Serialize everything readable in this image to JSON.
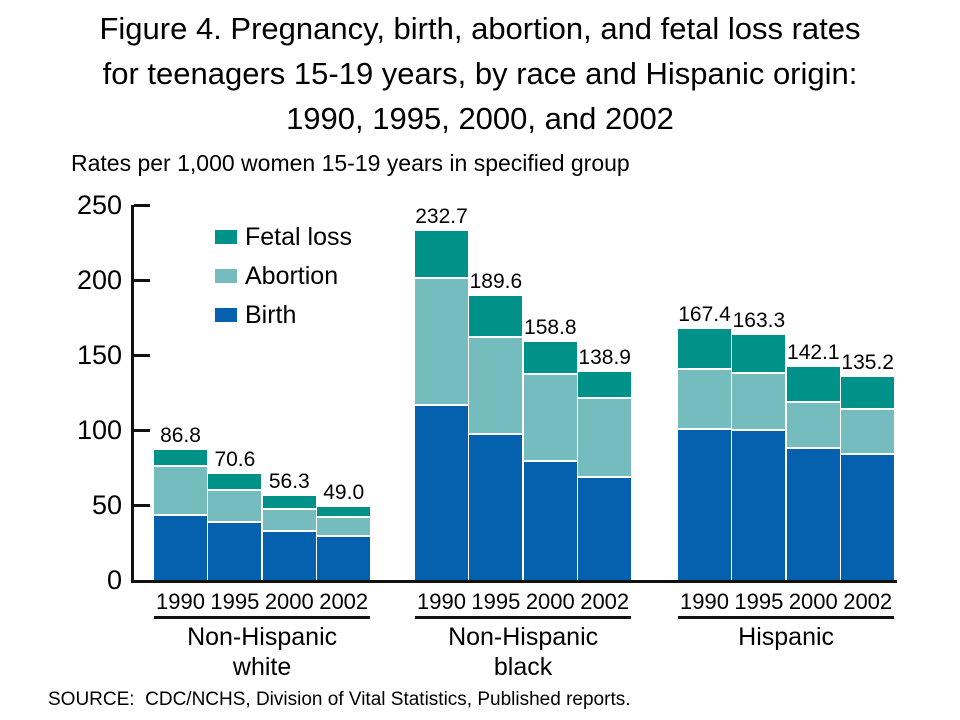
{
  "title": {
    "lines": [
      "Figure 4. Pregnancy, birth, abortion, and fetal loss rates",
      "for teenagers 15-19 years, by race and Hispanic origin:",
      "1990, 1995, 2000, and 2002"
    ]
  },
  "subtitle": "Rates per 1,000 women 15-19 years in specified group",
  "source": "SOURCE:  CDC/NCHS, Division of Vital Statistics, Published reports.",
  "legend": [
    {
      "label": "Fetal loss",
      "color": "#009189",
      "series_key": "fetal_loss"
    },
    {
      "label": "Abortion",
      "color": "#74bcbe",
      "series_key": "abortion"
    },
    {
      "label": "Birth",
      "color": "#0560ae",
      "series_key": "birth"
    }
  ],
  "colors": {
    "birth": "#0560ae",
    "abortion": "#74bcbe",
    "fetal_loss": "#009189",
    "axis": "#111111",
    "segment_separator": "#ffffff"
  },
  "chart_data": {
    "type": "bar",
    "stacked": true,
    "title": "Figure 4. Pregnancy, birth, abortion, and fetal loss rates for teenagers 15-19 years, by race and Hispanic origin: 1990, 1995, 2000, and 2002",
    "ylabel": "Rates per 1,000 women 15-19 years in specified group",
    "xlabel": "",
    "ylim": [
      0,
      250
    ],
    "yticks": [
      0,
      50,
      100,
      150,
      200,
      250
    ],
    "grid": false,
    "legend_position": "upper-left-inside",
    "segment_order_bottom_to_top": [
      "birth",
      "abortion",
      "fetal_loss"
    ],
    "segment_labels": {
      "birth": "Birth",
      "abortion": "Abortion",
      "fetal_loss": "Fetal loss"
    },
    "categories": [
      "1990",
      "1995",
      "2000",
      "2002"
    ],
    "groups": [
      {
        "label_lines": [
          "Non-Hispanic",
          "white"
        ],
        "bars": [
          {
            "year": "1990",
            "total": 86.8,
            "total_label": "86.8",
            "components_est": {
              "birth": 42.5,
              "abortion": 32.5,
              "fetal_loss": 11.8
            }
          },
          {
            "year": "1995",
            "total": 70.6,
            "total_label": "70.6",
            "components_est": {
              "birth": 38.3,
              "abortion": 21.2,
              "fetal_loss": 11.1
            }
          },
          {
            "year": "2000",
            "total": 56.3,
            "total_label": "56.3",
            "components_est": {
              "birth": 32.3,
              "abortion": 14.6,
              "fetal_loss": 9.4
            }
          },
          {
            "year": "2002",
            "total": 49.0,
            "total_label": "49.0",
            "components_est": {
              "birth": 28.5,
              "abortion": 13.0,
              "fetal_loss": 7.5
            }
          }
        ]
      },
      {
        "label_lines": [
          "Non-Hispanic",
          "black"
        ],
        "bars": [
          {
            "year": "1990",
            "total": 232.7,
            "total_label": "232.7",
            "components_est": {
              "birth": 116.2,
              "abortion": 84.5,
              "fetal_loss": 32.0
            }
          },
          {
            "year": "1995",
            "total": 189.6,
            "total_label": "189.6",
            "components_est": {
              "birth": 96.5,
              "abortion": 64.6,
              "fetal_loss": 28.5
            }
          },
          {
            "year": "2000",
            "total": 158.8,
            "total_label": "158.8",
            "components_est": {
              "birth": 78.7,
              "abortion": 58.0,
              "fetal_loss": 22.1
            }
          },
          {
            "year": "2002",
            "total": 138.9,
            "total_label": "138.9",
            "components_est": {
              "birth": 68.0,
              "abortion": 52.4,
              "fetal_loss": 18.5
            }
          }
        ]
      },
      {
        "label_lines": [
          "Hispanic"
        ],
        "bars": [
          {
            "year": "1990",
            "total": 167.4,
            "total_label": "167.4",
            "components_est": {
              "birth": 100.3,
              "abortion": 39.8,
              "fetal_loss": 27.3
            }
          },
          {
            "year": "1995",
            "total": 163.3,
            "total_label": "163.3",
            "components_est": {
              "birth": 99.0,
              "abortion": 38.3,
              "fetal_loss": 26.0
            }
          },
          {
            "year": "2000",
            "total": 142.1,
            "total_label": "142.1",
            "components_est": {
              "birth": 87.0,
              "abortion": 30.9,
              "fetal_loss": 24.2
            }
          },
          {
            "year": "2002",
            "total": 135.2,
            "total_label": "135.2",
            "components_est": {
              "birth": 83.4,
              "abortion": 29.7,
              "fetal_loss": 22.1
            }
          }
        ]
      }
    ]
  }
}
